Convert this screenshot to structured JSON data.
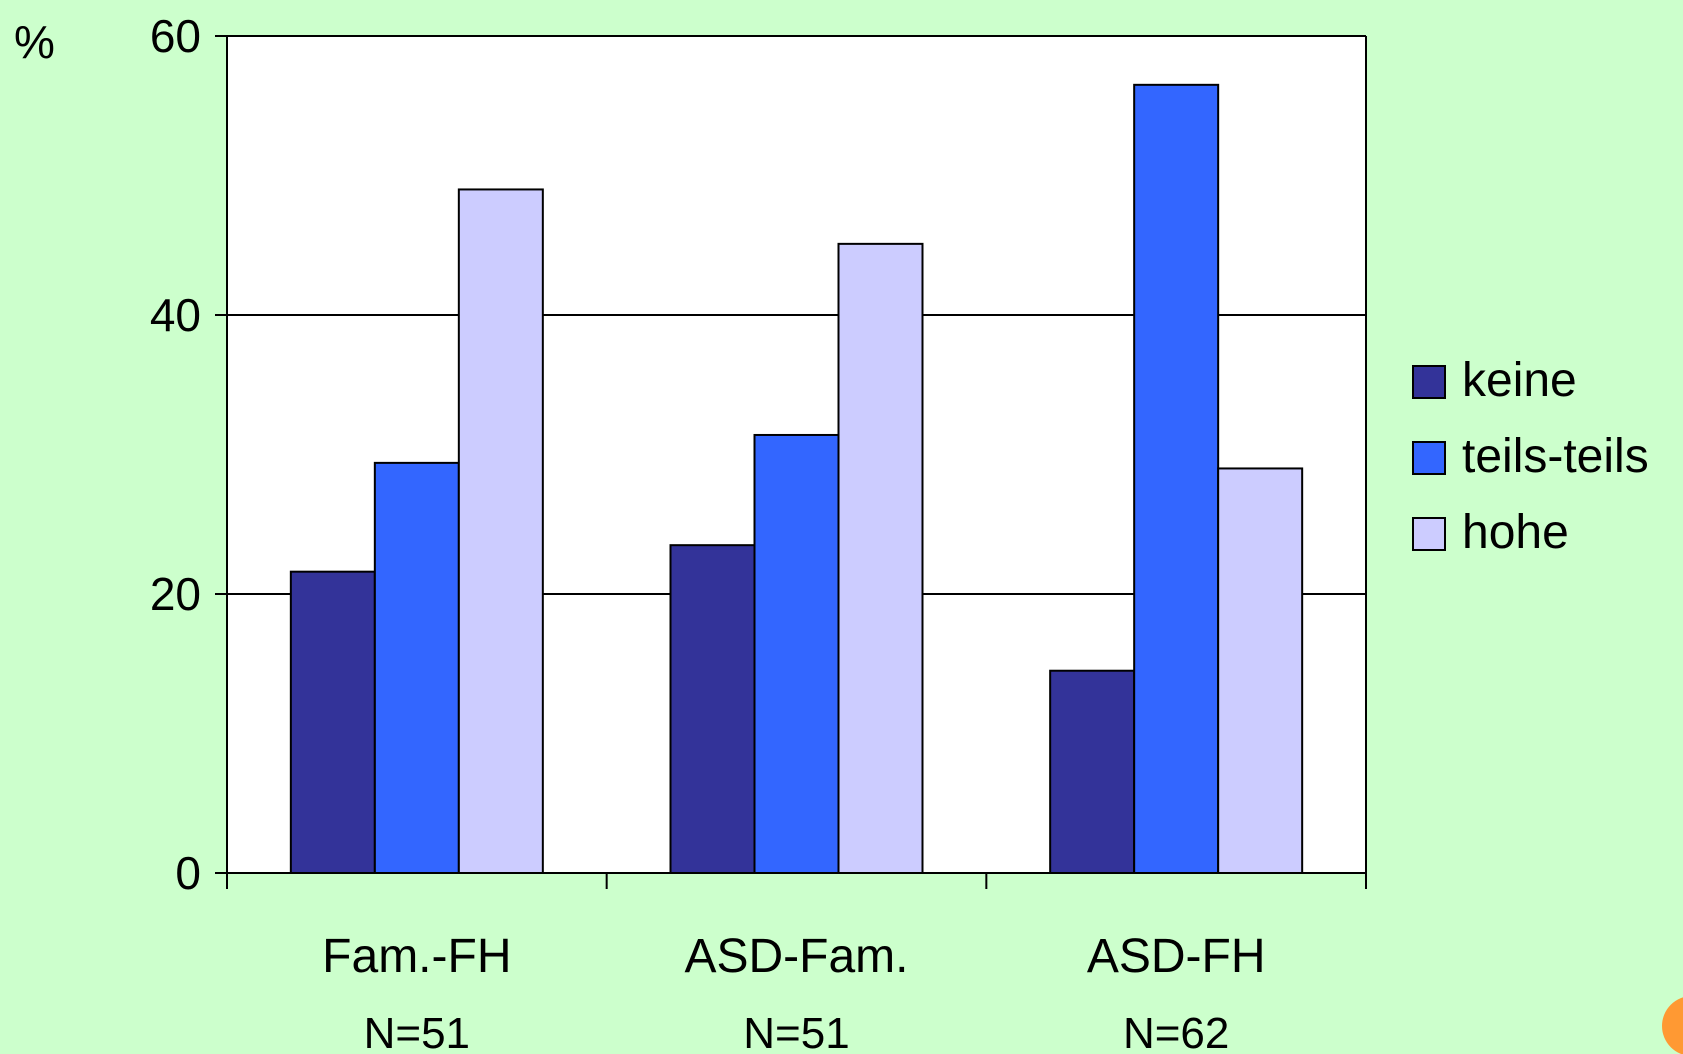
{
  "chart_data": {
    "type": "bar",
    "y_unit_label": "%",
    "categories": [
      "Fam.-FH",
      "ASD-Fam.",
      "ASD-FH"
    ],
    "category_sublabels": [
      "N=51",
      "N=51",
      "N=62"
    ],
    "series": [
      {
        "name": "keine",
        "values": [
          21.6,
          23.5,
          14.5
        ],
        "color": "#333399"
      },
      {
        "name": "teils-teils",
        "values": [
          29.4,
          31.4,
          56.5
        ],
        "color": "#3366ff"
      },
      {
        "name": "hohe",
        "values": [
          49.0,
          45.1,
          29.0
        ],
        "color": "#ccccff"
      }
    ],
    "ylim": [
      0,
      60
    ],
    "yticks": [
      0,
      20,
      40,
      60
    ],
    "grid": true,
    "legend_position": "right",
    "background_color": "#ccffcc",
    "plot_background_color": "#ffffff"
  }
}
